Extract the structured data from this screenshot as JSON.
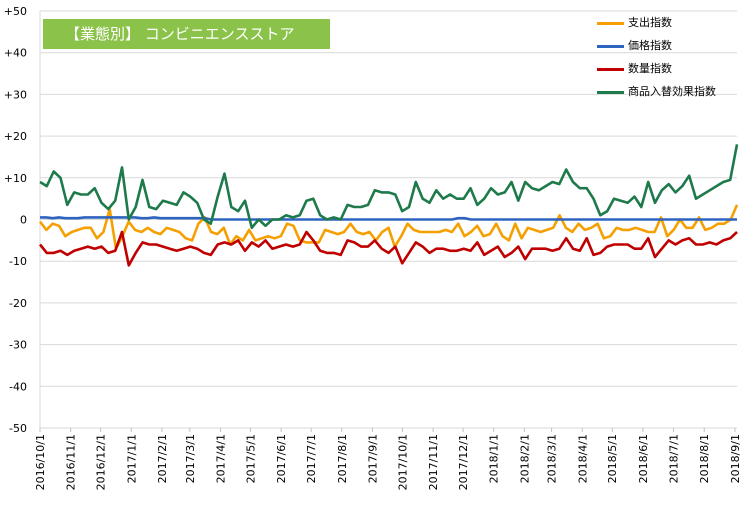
{
  "chart_data": {
    "type": "line",
    "title": "【業態別】 コンビニエンスストア",
    "ylim": [
      -50,
      50
    ],
    "y_ticks": [
      "+50",
      "+40",
      "+30",
      "+20",
      "+10",
      "0",
      "-10",
      "-20",
      "-30",
      "-40",
      "-50"
    ],
    "x_tick_labels": [
      "2016/10/1",
      "2016/11/1",
      "2016/12/1",
      "2017/1/1",
      "2017/2/1",
      "2017/3/1",
      "2017/4/1",
      "2017/5/1",
      "2017/6/1",
      "2017/7/1",
      "2017/8/1",
      "2017/9/1",
      "2017/10/1",
      "2017/11/1",
      "2017/12/1",
      "2018/1/1",
      "2018/2/1",
      "2018/3/1",
      "2018/4/1",
      "2018/5/1",
      "2018/6/1",
      "2018/7/1",
      "2018/8/1",
      "2018/9/1"
    ],
    "x_tick_positions": [
      0,
      4.4,
      8.7,
      13.1,
      17.5,
      21.5,
      25.9,
      30.2,
      34.6,
      38.9,
      43.3,
      47.7,
      52,
      56.4,
      60.7,
      65.1,
      69.5,
      73.4,
      77.8,
      82.1,
      86.5,
      90.9,
      95.3,
      99.7
    ],
    "grid": "horizontal",
    "legend_position": "top-right",
    "series": [
      {
        "name": "支出指数",
        "color": "#f5a000",
        "values": [
          -0.5,
          -2.5,
          -1,
          -1.5,
          -4,
          -3,
          -2.5,
          -2,
          -2,
          -4.5,
          -3,
          2.5,
          -7,
          -4,
          -0.5,
          -2.5,
          -3,
          -2,
          -3,
          -3.5,
          -2,
          -2.5,
          -3,
          -4.5,
          -5,
          -1,
          0.5,
          -3,
          -3.5,
          -2,
          -6,
          -4,
          -5,
          -2.5,
          -5,
          -4.5,
          -4,
          -4.5,
          -4,
          -1,
          -1.5,
          -5,
          -5.5,
          -5.5,
          -5.5,
          -2.5,
          -3,
          -3.5,
          -3,
          -1,
          -3,
          -3.5,
          -3,
          -5,
          -3,
          -2,
          -6.5,
          -4,
          -1,
          -2.5,
          -3,
          -3,
          -3,
          -3,
          -2.5,
          -3,
          -1,
          -4,
          -3,
          -1.5,
          -4,
          -3.5,
          -1,
          -4,
          -5,
          -1,
          -4.5,
          -2,
          -2.5,
          -3,
          -2.5,
          -2,
          1,
          -2,
          -3,
          -1,
          -2.5,
          -2,
          -1,
          -4.5,
          -4,
          -2,
          -2.5,
          -2.5,
          -2,
          -2.5,
          -3,
          -3,
          0.5,
          -4,
          -2.5,
          0,
          -2,
          -2,
          0.5,
          -2.5,
          -2,
          -1,
          -1,
          0,
          3.5
        ]
      },
      {
        "name": "価格指数",
        "color": "#2e64c0",
        "values": [
          0.5,
          0.5,
          0.3,
          0.5,
          0.3,
          0.3,
          0.3,
          0.5,
          0.5,
          0.5,
          0.5,
          0.5,
          0.5,
          0.5,
          0.5,
          0.5,
          0.3,
          0.3,
          0.5,
          0.3,
          0.3,
          0.3,
          0.3,
          0.3,
          0.3,
          0.3,
          0.3,
          0,
          0,
          0,
          0,
          0,
          0,
          0,
          0,
          0,
          0,
          0,
          0,
          0,
          0,
          0,
          0,
          0,
          0,
          0,
          0,
          0,
          0,
          0,
          0,
          0,
          0,
          0,
          0,
          0,
          0,
          0,
          0,
          0,
          0,
          0,
          0,
          0,
          0,
          0,
          0.3,
          0.3,
          0,
          0,
          0,
          0,
          0,
          0,
          0,
          0,
          0,
          0,
          0,
          0,
          0,
          0,
          0,
          0,
          0,
          0,
          0,
          0,
          0,
          0,
          0,
          0,
          0,
          0,
          0,
          0,
          0,
          0,
          0,
          0,
          0,
          0,
          0,
          0,
          0,
          0,
          0,
          0,
          0,
          0,
          0
        ]
      },
      {
        "name": "数量指数",
        "color": "#c00000",
        "values": [
          -6,
          -8,
          -8,
          -7.5,
          -8.5,
          -7.5,
          -7,
          -6.5,
          -7,
          -6.5,
          -8,
          -7.5,
          -3,
          -11,
          -8,
          -5.5,
          -6,
          -6,
          -6.5,
          -7,
          -7.5,
          -7,
          -6.5,
          -7,
          -8,
          -8.5,
          -6,
          -5.5,
          -6,
          -5,
          -7.5,
          -5.5,
          -6.5,
          -5,
          -7,
          -6.5,
          -6,
          -6.5,
          -6,
          -3,
          -5,
          -7.5,
          -8,
          -8,
          -8.5,
          -5,
          -5.5,
          -6.5,
          -6.5,
          -5,
          -7,
          -8,
          -6.5,
          -10.5,
          -8,
          -5.5,
          -6.5,
          -8,
          -7,
          -7,
          -7.5,
          -7.5,
          -7,
          -7.5,
          -5.5,
          -8.5,
          -7.5,
          -6.5,
          -9,
          -8,
          -6.5,
          -9.5,
          -7,
          -7,
          -7,
          -7.5,
          -7,
          -4.5,
          -7,
          -7.5,
          -4.5,
          -8.5,
          -8,
          -6.5,
          -6,
          -6,
          -6,
          -7,
          -7,
          -4.5,
          -9,
          -7,
          -5,
          -6,
          -5,
          -4.5,
          -6,
          -6,
          -5.5,
          -6,
          -5,
          -4.5,
          -3
        ]
      },
      {
        "name": "商品入替効果指数",
        "color": "#1e7a4a",
        "values": [
          9,
          8,
          11.5,
          10,
          3.5,
          6.5,
          6,
          6,
          7.5,
          4,
          2.5,
          4.5,
          12.5,
          0,
          3,
          9.5,
          3,
          2.5,
          4.5,
          4,
          3.5,
          6.5,
          5.5,
          4,
          0,
          -1,
          5.5,
          11,
          3,
          2,
          4.5,
          -2,
          0,
          -1.5,
          0,
          0,
          1,
          0.5,
          1,
          4.5,
          5,
          1,
          0,
          0.5,
          0,
          3.5,
          3,
          3,
          3.5,
          7,
          6.5,
          6.5,
          6,
          2,
          3,
          9,
          5,
          4,
          7,
          5,
          6,
          5,
          5,
          7.5,
          3.5,
          5,
          7.5,
          6,
          6.5,
          9,
          4.5,
          9,
          7.5,
          7,
          8,
          9,
          8.5,
          12,
          9,
          7.5,
          7.5,
          5,
          1,
          2,
          5,
          4.5,
          4,
          5.5,
          3,
          9,
          4,
          7,
          8.5,
          6.5,
          8,
          10.5,
          5,
          6,
          7,
          8,
          9,
          9.5,
          18
        ]
      }
    ]
  }
}
